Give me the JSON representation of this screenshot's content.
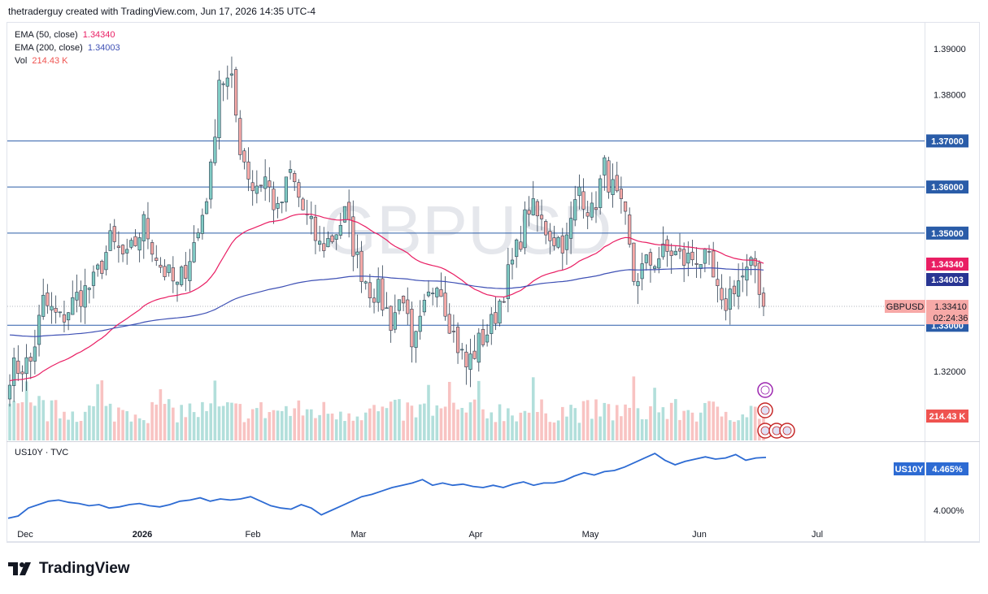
{
  "header": {
    "attribution": "thetraderguy created with TradingView.com, Jun 17, 2026 14:35 UTC-4"
  },
  "watermark": "GBPUSD",
  "legend": {
    "ema50_label": "EMA (50, close)",
    "ema50_value": "1.34340",
    "ema200_label": "EMA (200, close)",
    "ema200_value": "1.34003",
    "vol_label": "Vol",
    "vol_value": "214.43 K"
  },
  "lower_legend": "US10Y · TVC",
  "footer": {
    "brand": "TradingView"
  },
  "colors": {
    "up": "#26a69a",
    "down": "#ef5350",
    "ema50": "#e91e63",
    "ema200": "#3f51b5",
    "hline": "#2a5ca8",
    "us10y": "#2962ff"
  },
  "chart_data": [
    {
      "type": "candlestick",
      "symbol": "GBPUSD",
      "price_axis_ticks": [
        "1.39000",
        "1.38000",
        "1.32000"
      ],
      "ylim": [
        1.309,
        1.395
      ],
      "horizontal_levels": [
        "1.37000",
        "1.36000",
        "1.35000",
        "1.33000"
      ],
      "price_labels": [
        {
          "name": "EMA 50",
          "value": "1.34340"
        },
        {
          "name": "EMA 200",
          "value": "1.34003"
        },
        {
          "name": "GBPUSD",
          "value": "1.33410",
          "countdown": "02:24:36"
        },
        {
          "name": "Vol",
          "value": "214.43 K"
        }
      ],
      "x_labels": [
        "Dec",
        "2026",
        "Feb",
        "Mar",
        "Apr",
        "May",
        "Jun",
        "Jul"
      ],
      "close_anchors": [
        [
          0,
          1.32
        ],
        [
          5,
          1.322
        ],
        [
          8,
          1.335
        ],
        [
          12,
          1.331
        ],
        [
          16,
          1.336
        ],
        [
          20,
          1.339
        ],
        [
          24,
          1.348
        ],
        [
          28,
          1.344
        ],
        [
          32,
          1.352
        ],
        [
          36,
          1.343
        ],
        [
          40,
          1.338
        ],
        [
          45,
          1.35
        ],
        [
          48,
          1.363
        ],
        [
          50,
          1.384
        ],
        [
          53,
          1.382
        ],
        [
          55,
          1.369
        ],
        [
          58,
          1.36
        ],
        [
          61,
          1.362
        ],
        [
          64,
          1.354
        ],
        [
          67,
          1.363
        ],
        [
          70,
          1.355
        ],
        [
          74,
          1.347
        ],
        [
          77,
          1.349
        ],
        [
          80,
          1.354
        ],
        [
          83,
          1.344
        ],
        [
          86,
          1.338
        ],
        [
          88,
          1.337
        ],
        [
          91,
          1.331
        ],
        [
          94,
          1.337
        ],
        [
          96,
          1.323
        ],
        [
          99,
          1.333
        ],
        [
          102,
          1.341
        ],
        [
          106,
          1.328
        ],
        [
          109,
          1.321
        ],
        [
          112,
          1.326
        ],
        [
          115,
          1.33
        ],
        [
          118,
          1.338
        ],
        [
          121,
          1.346
        ],
        [
          124,
          1.356
        ],
        [
          127,
          1.352
        ],
        [
          130,
          1.349
        ],
        [
          133,
          1.348
        ],
        [
          136,
          1.36
        ],
        [
          139,
          1.354
        ],
        [
          142,
          1.364
        ],
        [
          145,
          1.357
        ],
        [
          147,
          1.352
        ],
        [
          149,
          1.34
        ],
        [
          152,
          1.343
        ],
        [
          155,
          1.345
        ],
        [
          158,
          1.346
        ],
        [
          161,
          1.344
        ],
        [
          164,
          1.345
        ],
        [
          167,
          1.343
        ],
        [
          170,
          1.333
        ],
        [
          173,
          1.339
        ],
        [
          176,
          1.341
        ],
        [
          178,
          1.343
        ],
        [
          180,
          1.3341
        ]
      ],
      "volume_ylim": [
        0,
        90000
      ]
    },
    {
      "type": "line",
      "symbol": "US10Y",
      "source": "TVC",
      "last_value": "4.465%",
      "tick": "4.000%",
      "values": [
        3.93,
        3.95,
        4.02,
        4.05,
        4.08,
        4.09,
        4.07,
        4.06,
        4.04,
        4.05,
        4.02,
        4.03,
        4.05,
        4.06,
        4.04,
        4.03,
        4.05,
        4.08,
        4.09,
        4.11,
        4.08,
        4.1,
        4.09,
        4.1,
        4.12,
        4.08,
        4.04,
        4.02,
        4.01,
        4.05,
        4.02,
        3.96,
        4.0,
        4.04,
        4.08,
        4.12,
        4.14,
        4.17,
        4.2,
        4.22,
        4.24,
        4.27,
        4.22,
        4.24,
        4.22,
        4.23,
        4.21,
        4.2,
        4.22,
        4.2,
        4.23,
        4.25,
        4.22,
        4.24,
        4.24,
        4.26,
        4.3,
        4.33,
        4.31,
        4.34,
        4.35,
        4.38,
        4.42,
        4.46,
        4.5,
        4.44,
        4.4,
        4.43,
        4.45,
        4.47,
        4.45,
        4.46,
        4.49,
        4.44,
        4.46,
        4.465
      ]
    }
  ]
}
